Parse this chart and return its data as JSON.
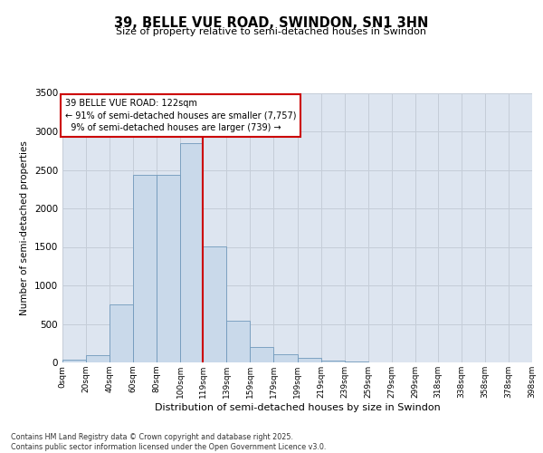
{
  "title": "39, BELLE VUE ROAD, SWINDON, SN1 3HN",
  "subtitle": "Size of property relative to semi-detached houses in Swindon",
  "xlabel": "Distribution of semi-detached houses by size in Swindon",
  "ylabel": "Number of semi-detached properties",
  "property_label": "39 BELLE VUE ROAD: 122sqm",
  "pct_smaller": 91,
  "pct_larger": 9,
  "count_smaller": 7757,
  "count_larger": 739,
  "bin_edges": [
    0,
    20,
    40,
    60,
    80,
    100,
    119,
    139,
    159,
    179,
    199,
    219,
    239,
    259,
    279,
    299,
    318,
    338,
    358,
    378,
    398
  ],
  "bin_labels": [
    "0sqm",
    "20sqm",
    "40sqm",
    "60sqm",
    "80sqm",
    "100sqm",
    "119sqm",
    "139sqm",
    "159sqm",
    "179sqm",
    "199sqm",
    "219sqm",
    "239sqm",
    "259sqm",
    "279sqm",
    "299sqm",
    "318sqm",
    "338sqm",
    "358sqm",
    "378sqm",
    "398sqm"
  ],
  "counts": [
    30,
    100,
    750,
    2430,
    2430,
    2850,
    1510,
    540,
    205,
    110,
    55,
    25,
    10,
    5,
    3,
    2,
    1,
    0,
    0,
    0
  ],
  "bar_color": "#c9d9ea",
  "bar_edge_color": "#7099bb",
  "vline_color": "#cc0000",
  "vline_x": 119,
  "annotation_box_color": "#cc0000",
  "grid_color": "#c5cdd8",
  "background_color": "#dde5f0",
  "ylim": [
    0,
    3500
  ],
  "yticks": [
    0,
    500,
    1000,
    1500,
    2000,
    2500,
    3000,
    3500
  ],
  "footer": "Contains HM Land Registry data © Crown copyright and database right 2025.\nContains public sector information licensed under the Open Government Licence v3.0."
}
